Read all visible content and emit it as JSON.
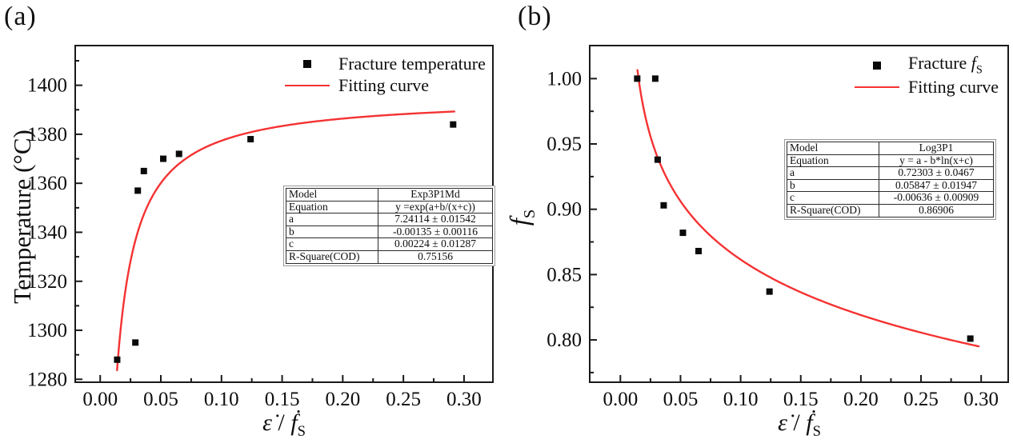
{
  "figure": {
    "background": "#ffffff",
    "colors": {
      "fit_red": "#f53232",
      "marker_black": "#0a0a0a",
      "frame": "#1a1a1a",
      "ink": "#0d0d0d"
    }
  },
  "x_axis_title": {
    "eps": "ε̇",
    "slash": " / ",
    "fdot": "ḟ",
    "sub": "S"
  },
  "panels": [
    {
      "label": "(a)",
      "y_title": "Temperature (°C)",
      "legend": {
        "scatter_label": "Fracture temperature",
        "line_label": "Fitting curve"
      },
      "table": {
        "rows": [
          [
            "Model",
            "Exp3P1Md"
          ],
          [
            "Equation",
            "y =exp(a+b/(x+c))"
          ],
          [
            "a",
            "7.24114 ± 0.01542"
          ],
          [
            "b",
            "-0.00135 ± 0.00116"
          ],
          [
            "c",
            "0.00224 ± 0.01287"
          ],
          [
            "R-Square(COD)",
            "0.75156"
          ]
        ]
      }
    },
    {
      "label": "(b)",
      "y_title_f": "f",
      "y_title_sub": "S",
      "legend": {
        "scatter_prefix": "Fracture ",
        "scatter_f": "f",
        "scatter_sub": "S",
        "line_label": "Fitting curve"
      },
      "table": {
        "rows": [
          [
            "Model",
            "Log3P1"
          ],
          [
            "Equation",
            "y = a - b*ln(x+c)"
          ],
          [
            "a",
            "0.72303 ± 0.0467"
          ],
          [
            "b",
            "0.05847 ± 0.01947"
          ],
          [
            "c",
            "-0.00636 ± 0.00909"
          ],
          [
            "R-Square(COD)",
            "0.86906"
          ]
        ]
      }
    }
  ],
  "chart_data": [
    {
      "type": "scatter",
      "panel": "a",
      "series_name": "Fracture temperature",
      "xlabel": "ε̇ / ḟS",
      "ylabel": "Temperature (°C)",
      "x": [
        0.014,
        0.029,
        0.031,
        0.036,
        0.052,
        0.065,
        0.124,
        0.291
      ],
      "y": [
        1288,
        1295,
        1357,
        1365,
        1370,
        1372,
        1378,
        1384
      ],
      "fit": {
        "name": "Fitting curve",
        "model": "Exp3P1Md",
        "equation": "y = exp(a+b/(x+c))",
        "a": 7.24114,
        "b": -0.00135,
        "c": 0.00224,
        "r_square": 0.75156,
        "x_range": [
          0.0139,
          0.292
        ]
      },
      "xlim": [
        -0.0206,
        0.3238
      ],
      "ylim": [
        1278.8,
        1416.2
      ],
      "x_ticks": [
        0,
        0.05,
        0.1,
        0.15,
        0.2,
        0.25,
        0.3
      ],
      "x_tick_labels": [
        "0.00",
        "0.05",
        "0.10",
        "0.15",
        "0.20",
        "0.25",
        "0.30"
      ],
      "x_minor_ticks": [
        0.025,
        0.075,
        0.125,
        0.175,
        0.225,
        0.275
      ],
      "y_ticks": [
        1280,
        1300,
        1320,
        1340,
        1360,
        1380,
        1400
      ],
      "y_tick_labels": [
        "1280",
        "1300",
        "1320",
        "1340",
        "1360",
        "1380",
        "1400"
      ],
      "y_minor_ticks": [
        1290,
        1310,
        1330,
        1350,
        1370,
        1390,
        1410
      ],
      "legend_position": "top-right",
      "grid": false,
      "marker": {
        "shape": "square",
        "color": "#0a0a0a",
        "size": 8
      }
    },
    {
      "type": "scatter",
      "panel": "b",
      "series_name": "Fracture fS",
      "xlabel": "ε̇ / ḟS",
      "ylabel": "fS",
      "x": [
        0.014,
        0.029,
        0.031,
        0.036,
        0.052,
        0.065,
        0.124,
        0.291
      ],
      "y": [
        1.0,
        1.0,
        0.938,
        0.903,
        0.882,
        0.868,
        0.837,
        0.801
      ],
      "fit": {
        "name": "Fitting curve",
        "model": "Log3P1",
        "equation": "y = a - b*ln(x+c)",
        "a": 0.72303,
        "b": 0.05847,
        "c": -0.00636,
        "r_square": 0.86906,
        "x_range": [
          0.0142,
          0.298
        ]
      },
      "xlim": [
        -0.0255,
        0.3225
      ],
      "ylim": [
        0.7676,
        1.0253
      ],
      "x_ticks": [
        0,
        0.05,
        0.1,
        0.15,
        0.2,
        0.25,
        0.3
      ],
      "x_tick_labels": [
        "0.00",
        "0.05",
        "0.10",
        "0.15",
        "0.20",
        "0.25",
        "0.30"
      ],
      "x_minor_ticks": [
        0.025,
        0.075,
        0.125,
        0.175,
        0.225,
        0.275
      ],
      "y_ticks": [
        0.8,
        0.85,
        0.9,
        0.95,
        1.0
      ],
      "y_tick_labels": [
        "0.80",
        "0.85",
        "0.90",
        "0.95",
        "1.00"
      ],
      "y_minor_ticks": [
        0.775,
        0.825,
        0.875,
        0.925,
        0.975
      ],
      "legend_position": "top-right",
      "grid": false,
      "marker": {
        "shape": "square",
        "color": "#0a0a0a",
        "size": 8
      }
    }
  ]
}
